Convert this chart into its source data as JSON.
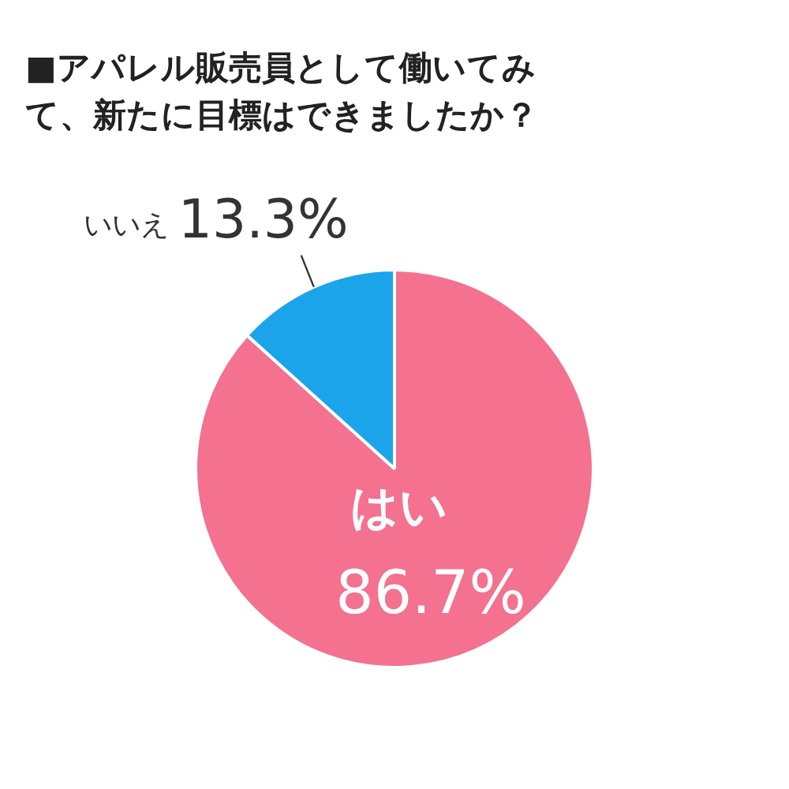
{
  "chart_data": {
    "type": "pie",
    "title": "■アパレル販売員として働いてみて、新たに目標はできましたか？",
    "categories": [
      "はい",
      "いいえ"
    ],
    "values": [
      86.7,
      13.3
    ],
    "colors": [
      "#f47190",
      "#1ba4ea"
    ],
    "value_labels": [
      "86.7%",
      "13.3%"
    ],
    "legend": false
  }
}
